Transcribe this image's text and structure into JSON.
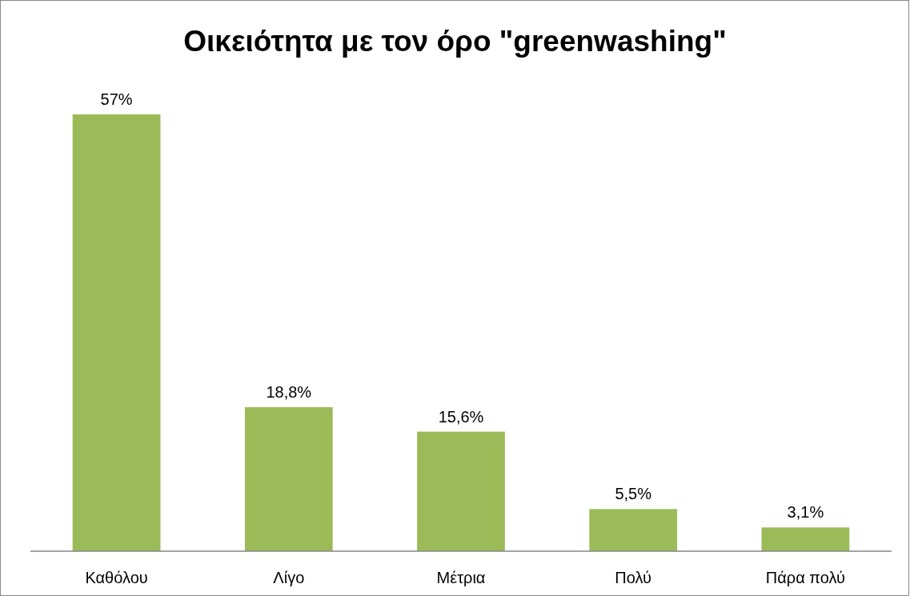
{
  "chart_data": {
    "type": "bar",
    "title": "Οικειότητα με τον όρο \"greenwashing\"",
    "categories": [
      "Καθόλου",
      "Λίγο",
      "Μέτρια",
      "Πολύ",
      "Πάρα πολύ"
    ],
    "values": [
      57,
      18.8,
      15.6,
      5.5,
      3.1
    ],
    "value_labels": [
      "57%",
      "18,8%",
      "15,6%",
      "5,5%",
      "3,1%"
    ],
    "color": "#9bbb59"
  }
}
